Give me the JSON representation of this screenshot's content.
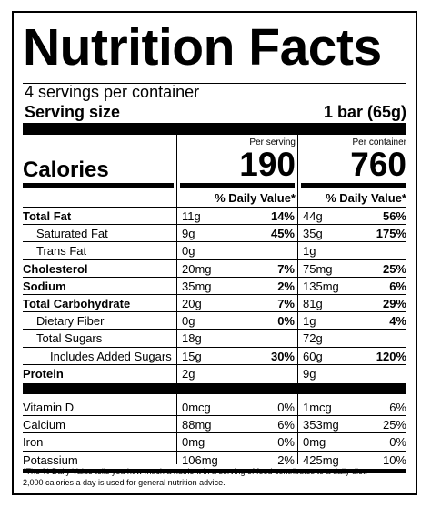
{
  "title": "Nutrition Facts",
  "servings_per_container": "4 servings per container",
  "serving_size_label": "Serving size",
  "serving_size_value": "1 bar (65g)",
  "per_serving_label": "Per serving",
  "per_container_label": "Per container",
  "calories_label": "Calories",
  "calories_per_serving": "190",
  "calories_per_container": "760",
  "dv_header": "% Daily Value*",
  "nutrients": [
    {
      "name": "Total Fat",
      "bold": true,
      "indent": 0,
      "s_amt": "11g",
      "s_dv": "14%",
      "c_amt": "44g",
      "c_dv": "56%"
    },
    {
      "name": "Saturated Fat",
      "bold": false,
      "indent": 1,
      "s_amt": "9g",
      "s_dv": "45%",
      "c_amt": "35g",
      "c_dv": "175%"
    },
    {
      "name": "Trans Fat",
      "bold": false,
      "indent": 1,
      "s_amt": "0g",
      "s_dv": "",
      "c_amt": "1g",
      "c_dv": ""
    },
    {
      "name": "Cholesterol",
      "bold": true,
      "indent": 0,
      "s_amt": "20mg",
      "s_dv": "7%",
      "c_amt": "75mg",
      "c_dv": "25%"
    },
    {
      "name": "Sodium",
      "bold": true,
      "indent": 0,
      "s_amt": "35mg",
      "s_dv": "2%",
      "c_amt": "135mg",
      "c_dv": "6%"
    },
    {
      "name": "Total Carbohydrate",
      "bold": true,
      "indent": 0,
      "s_amt": "20g",
      "s_dv": "7%",
      "c_amt": "81g",
      "c_dv": "29%"
    },
    {
      "name": "Dietary Fiber",
      "bold": false,
      "indent": 1,
      "s_amt": "0g",
      "s_dv": "0%",
      "c_amt": "1g",
      "c_dv": "4%"
    },
    {
      "name": "Total Sugars",
      "bold": false,
      "indent": 1,
      "s_amt": "18g",
      "s_dv": "",
      "c_amt": "72g",
      "c_dv": ""
    },
    {
      "name": "Includes Added Sugars",
      "bold": false,
      "indent": 2,
      "s_amt": "15g",
      "s_dv": "30%",
      "c_amt": "60g",
      "c_dv": "120%"
    },
    {
      "name": "Protein",
      "bold": true,
      "indent": 0,
      "s_amt": "2g",
      "s_dv": "",
      "c_amt": "9g",
      "c_dv": ""
    }
  ],
  "vitamins": [
    {
      "name": "Vitamin D",
      "s_amt": "0mcg",
      "s_dv": "0%",
      "c_amt": "1mcg",
      "c_dv": "6%"
    },
    {
      "name": "Calcium",
      "s_amt": "88mg",
      "s_dv": "6%",
      "c_amt": "353mg",
      "c_dv": "25%"
    },
    {
      "name": "Iron",
      "s_amt": "0mg",
      "s_dv": "0%",
      "c_amt": "0mg",
      "c_dv": "0%"
    },
    {
      "name": "Potassium",
      "s_amt": "106mg",
      "s_dv": "2%",
      "c_amt": "425mg",
      "c_dv": "10%"
    }
  ],
  "footnote_line1": "*The % Daily Value tells you how much a nutrient in a serving of food contributes to a daily diet.",
  "footnote_line2": "2,000 calories a day is used for general nutrition advice."
}
